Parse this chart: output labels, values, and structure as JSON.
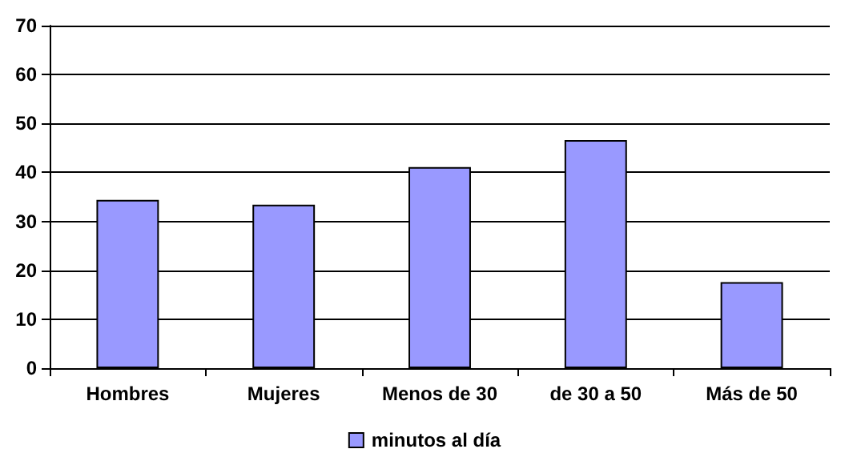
{
  "chart_data": {
    "type": "bar",
    "categories": [
      "Hombres",
      "Mujeres",
      "Menos de 30",
      "de 30 a 50",
      "Más de 50"
    ],
    "series": [
      {
        "name": "minutos al día",
        "color": "#9999ff",
        "values": [
          34.4,
          33.4,
          41.1,
          46.6,
          17.6
        ]
      }
    ],
    "ylim": [
      0,
      70
    ],
    "yticks": [
      0,
      10,
      20,
      30,
      40,
      50,
      60,
      70
    ],
    "grid": "y",
    "legend": "bottom"
  }
}
